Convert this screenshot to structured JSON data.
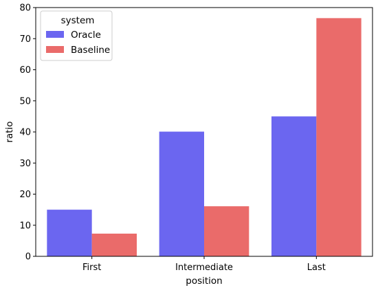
{
  "chart_data": {
    "type": "bar",
    "xlabel": "position",
    "ylabel": "ratio",
    "categories": [
      "First",
      "Intermediate",
      "Last"
    ],
    "series": [
      {
        "name": "Oracle",
        "values": [
          15.0,
          40.1,
          45.0
        ],
        "color": "#6b66f0"
      },
      {
        "name": "Baseline",
        "values": [
          7.3,
          16.1,
          76.6
        ],
        "color": "#ea6b6a"
      }
    ],
    "ylim": [
      0,
      80
    ],
    "yticks": [
      0,
      10,
      20,
      30,
      40,
      50,
      60,
      70,
      80
    ],
    "grid": false,
    "legend": {
      "title": "system",
      "placement": "top-left"
    }
  }
}
